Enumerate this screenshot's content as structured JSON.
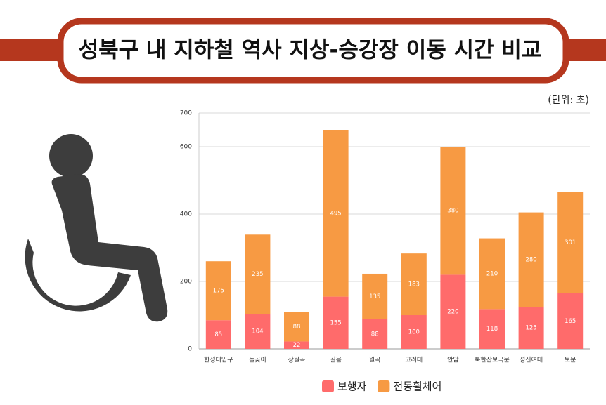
{
  "chart_data": {
    "type": "stacked-bar",
    "title": "성북구 내 지하철 역사 지상-승강장 이동 시간 비교",
    "unit_label": "(단위: 초)",
    "categories": [
      "한성대입구",
      "돌곶이",
      "상월곡",
      "길음",
      "월곡",
      "고려대",
      "안암",
      "북한산보국문",
      "성신여대",
      "보문"
    ],
    "series": [
      {
        "name": "보행자",
        "color": "#ff6b6b",
        "values": [
          85,
          104,
          22,
          155,
          88,
          100,
          220,
          118,
          125,
          165
        ]
      },
      {
        "name": "전동휠체어",
        "color": "#f79a43",
        "values": [
          175,
          235,
          88,
          495,
          135,
          183,
          380,
          210,
          280,
          301
        ]
      }
    ],
    "ylim": [
      0,
      700
    ],
    "yticks": [
      0,
      200,
      400,
      600,
      700
    ],
    "grid": true,
    "legend": "bottom"
  }
}
